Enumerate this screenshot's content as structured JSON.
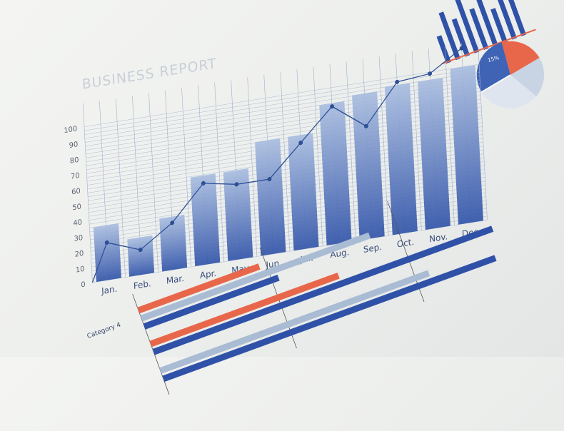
{
  "chart_data": {
    "type": "bar",
    "title": "BUSINESS REPORT",
    "categories": [
      "Jan.",
      "Feb.",
      "Mar.",
      "Apr.",
      "May.",
      "Jun.",
      "Jul.",
      "Aug.",
      "Sep.",
      "Oct.",
      "Nov.",
      "Dec."
    ],
    "series": [
      {
        "type": "bar",
        "values": [
          35,
          24,
          34,
          57,
          57,
          73,
          73,
          90,
          93,
          95,
          95,
          100
        ]
      },
      {
        "type": "line",
        "values": [
          24,
          16,
          30,
          52,
          48,
          48,
          68,
          88,
          72,
          97,
          99,
          112
        ]
      }
    ],
    "yticks": [
      "0",
      "10",
      "20",
      "30",
      "40",
      "50",
      "60",
      "70",
      "80",
      "90",
      "100"
    ],
    "ylim": [
      0,
      115
    ],
    "grid": true,
    "colors": {
      "bar": "#3f63b5",
      "line": "#2d4f95",
      "grid": "#9fb0cc",
      "accent": "#e8674a"
    }
  },
  "pie": {
    "label": "15%"
  },
  "bottom_chart": {
    "category_label": "Category 4"
  }
}
